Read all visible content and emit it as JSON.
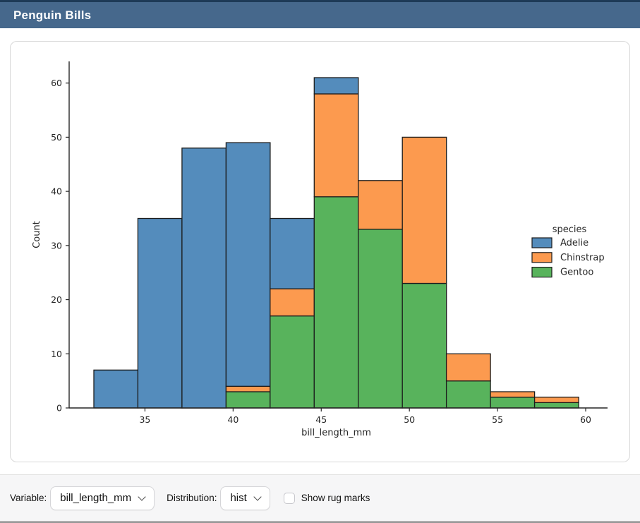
{
  "window": {
    "title": "Penguin Bills"
  },
  "chart_data": {
    "type": "bar",
    "subtype": "stacked-histogram",
    "title": "",
    "xlabel": "bill_length_mm",
    "ylabel": "Count",
    "bin_edges": [
      32.1,
      34.6,
      37.1,
      39.6,
      42.1,
      44.6,
      47.1,
      49.6,
      52.1,
      54.6,
      57.1,
      59.6
    ],
    "series": [
      {
        "name": "Gentoo",
        "color": "#58b35c",
        "values": [
          0,
          0,
          0,
          3,
          17,
          39,
          33,
          23,
          5,
          2,
          1
        ]
      },
      {
        "name": "Chinstrap",
        "color": "#fc9a4f",
        "values": [
          0,
          0,
          0,
          1,
          5,
          19,
          9,
          27,
          5,
          1,
          1
        ]
      },
      {
        "name": "Adelie",
        "color": "#548cbc",
        "values": [
          7,
          35,
          48,
          45,
          13,
          3,
          0,
          0,
          0,
          0,
          0
        ]
      }
    ],
    "stack_totals": [
      7,
      35,
      48,
      49,
      35,
      61,
      42,
      50,
      10,
      3,
      2
    ],
    "x_ticks": [
      35,
      40,
      45,
      50,
      55,
      60
    ],
    "y_ticks": [
      0,
      10,
      20,
      30,
      40,
      50,
      60
    ],
    "xlim": [
      30.7,
      61.0
    ],
    "ylim": [
      0,
      64
    ],
    "grid": false,
    "bar_edge_color": "#1c1c1c",
    "legend": {
      "title": "species",
      "position": "right",
      "entries": [
        {
          "label": "Adelie",
          "color": "#548cbc"
        },
        {
          "label": "Chinstrap",
          "color": "#fc9a4f"
        },
        {
          "label": "Gentoo",
          "color": "#58b35c"
        }
      ]
    }
  },
  "controls": {
    "variable_label": "Variable:",
    "variable_value": "bill_length_mm",
    "distribution_label": "Distribution:",
    "distribution_value": "hist",
    "rug_label": "Show rug marks",
    "rug_checked": false
  },
  "colors": {
    "titlebar_bg": "#46688c",
    "titlebar_strip": "#1e3a57",
    "card_border": "#d8d8d8",
    "controls_bg": "#f6f6f7"
  }
}
